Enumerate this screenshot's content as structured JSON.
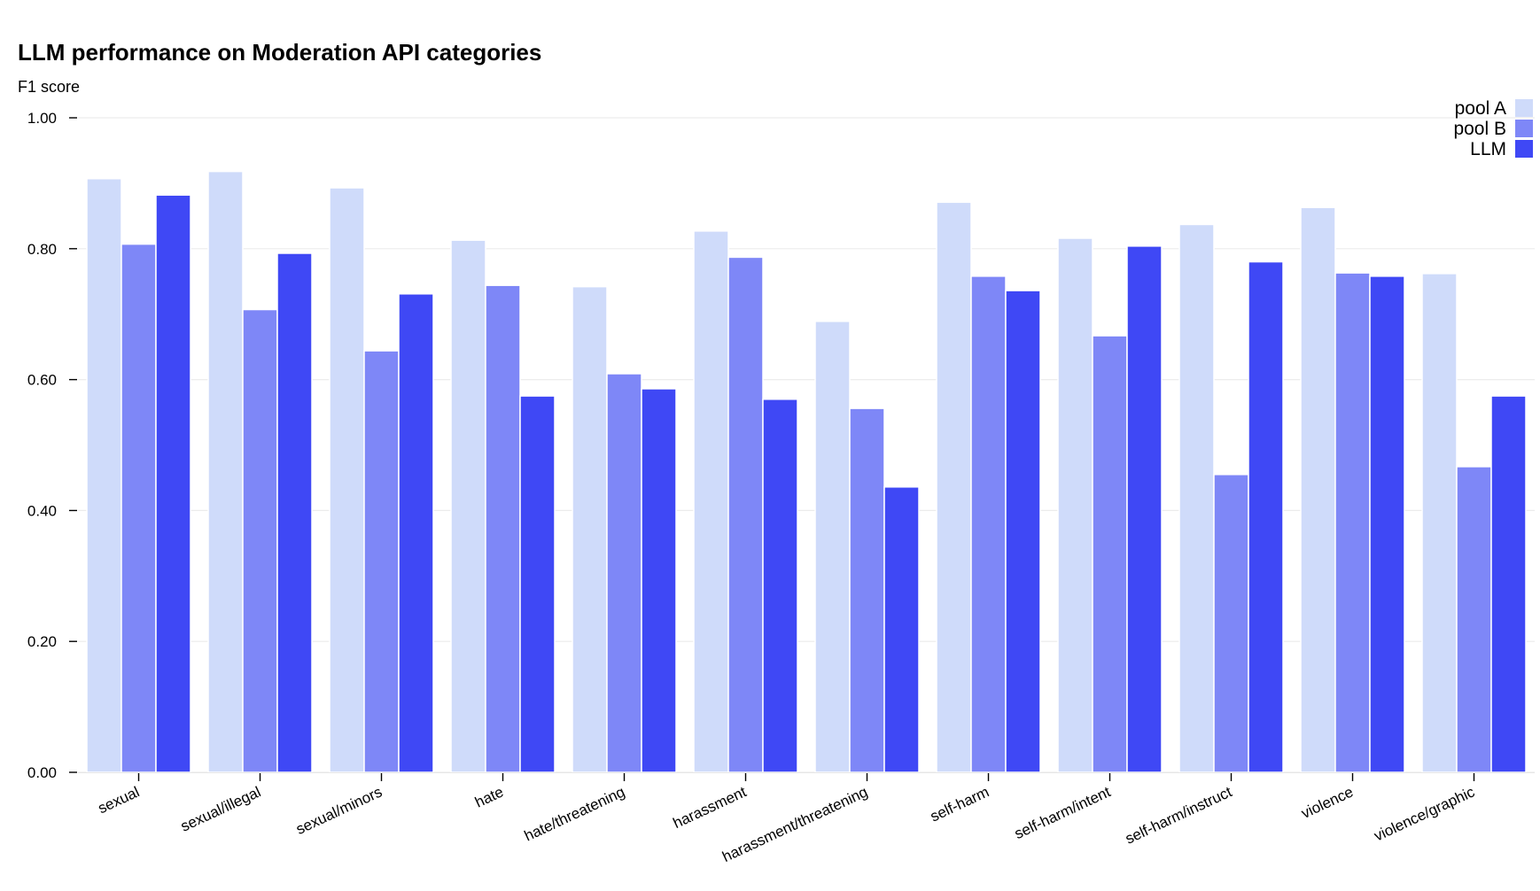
{
  "chart_data": {
    "type": "bar",
    "title": "LLM performance on Moderation API categories",
    "ylabel": "F1 score",
    "xlabel": "",
    "ylim": [
      0,
      1.0
    ],
    "yticks": [
      "0.00",
      "0.20",
      "0.40",
      "0.60",
      "0.80",
      "1.00"
    ],
    "grid": true,
    "legend_position": "top-right",
    "categories": [
      "sexual",
      "sexual/illegal",
      "sexual/minors",
      "hate",
      "hate/threatening",
      "harassment",
      "harassment/threatening",
      "self-harm",
      "self-harm/intent",
      "self-harm/instruct",
      "violence",
      "violence/graphic"
    ],
    "series": [
      {
        "name": "pool A",
        "color": "#cfdbfa",
        "values": [
          0.907,
          0.918,
          0.893,
          0.813,
          0.742,
          0.827,
          0.689,
          0.871,
          0.816,
          0.837,
          0.863,
          0.762
        ]
      },
      {
        "name": "pool B",
        "color": "#7e87f7",
        "values": [
          0.807,
          0.707,
          0.644,
          0.744,
          0.609,
          0.787,
          0.556,
          0.758,
          0.667,
          0.455,
          0.763,
          0.467
        ]
      },
      {
        "name": "LLM",
        "color": "#3f48f5",
        "values": [
          0.882,
          0.793,
          0.731,
          0.575,
          0.586,
          0.57,
          0.436,
          0.736,
          0.804,
          0.78,
          0.758,
          0.575
        ]
      }
    ]
  }
}
